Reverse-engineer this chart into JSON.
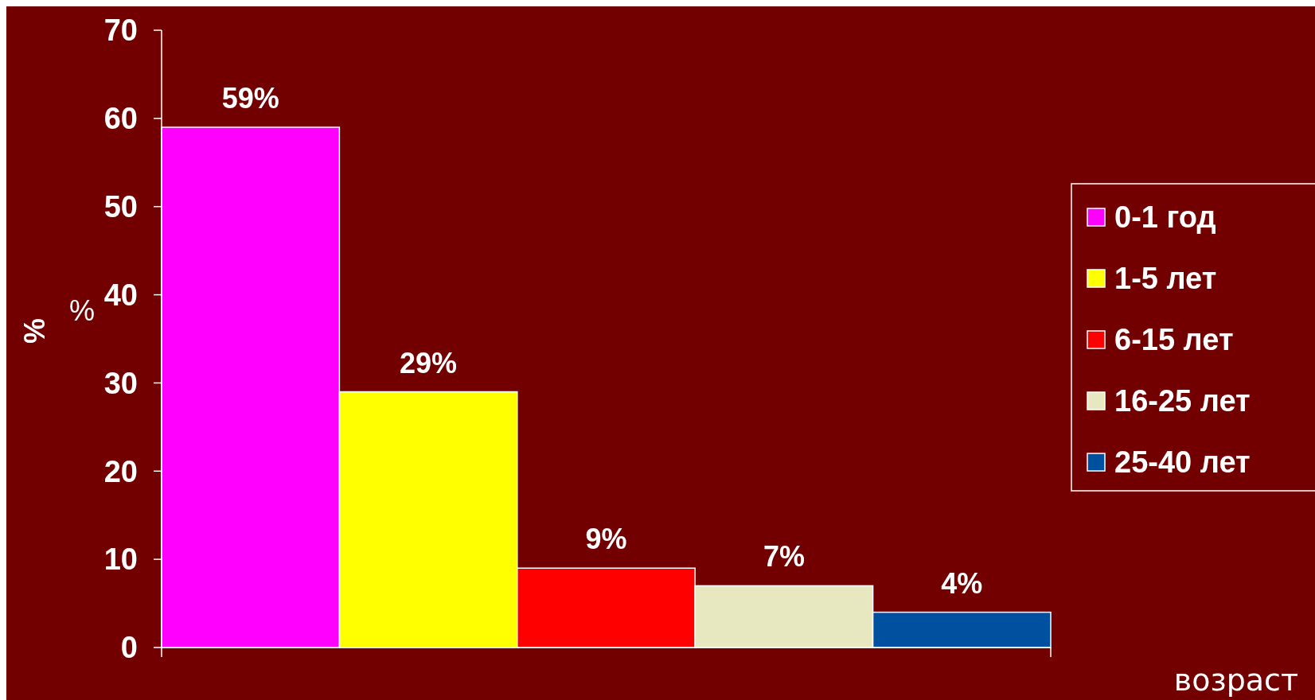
{
  "chart_data": {
    "type": "bar",
    "categories": [
      null
    ],
    "series": [
      {
        "name": "0-1 год",
        "color": "#ff00ff",
        "values": [
          59
        ],
        "value_labels": [
          "59%"
        ]
      },
      {
        "name": "1-5 лет",
        "color": "#ffff00",
        "values": [
          29
        ],
        "value_labels": [
          "29%"
        ]
      },
      {
        "name": "6-15 лет",
        "color": "#ff0000",
        "values": [
          9
        ],
        "value_labels": [
          "9%"
        ]
      },
      {
        "name": "16-25 лет",
        "color": "#e8e8c0",
        "values": [
          7
        ],
        "value_labels": [
          "7%"
        ]
      },
      {
        "name": "25-40 лет",
        "color": "#0050a0",
        "values": [
          4
        ],
        "value_labels": [
          "4%"
        ]
      }
    ],
    "ylim": [
      0,
      70
    ],
    "yticks": [
      0,
      10,
      20,
      30,
      40,
      50,
      60,
      70
    ],
    "ylabel": "%",
    "xlabel": "возраст",
    "annotations": [
      "%"
    ],
    "legend": "right",
    "grid": false
  }
}
